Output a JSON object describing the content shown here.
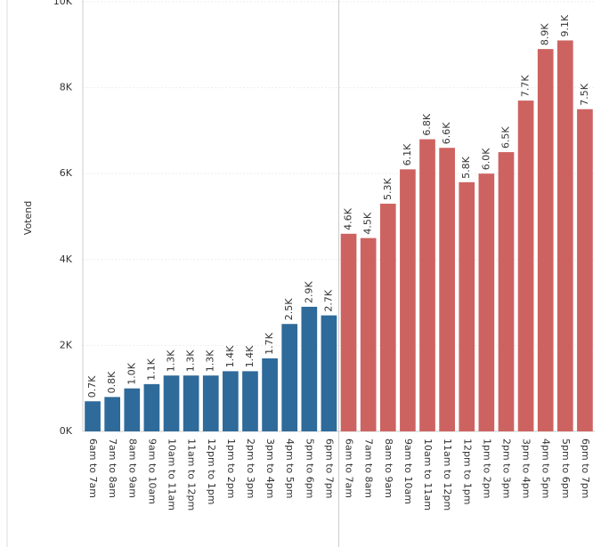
{
  "chart_data": {
    "type": "bar",
    "y_label": "Votend",
    "categories": [
      "6am to 7am",
      "7am to 8am",
      "8am to 9am",
      "9am to 10am",
      "10am to 11am",
      "11am to 12pm",
      "12pm to 1pm",
      "1pm to 2pm",
      "2pm to 3pm",
      "3pm to 4pm",
      "4pm to 5pm",
      "5pm to 6pm",
      "6pm to 7pm"
    ],
    "ylim": [
      0,
      10000
    ],
    "yticks": [
      {
        "value": 0,
        "label": "0K"
      },
      {
        "value": 2000,
        "label": "2K"
      },
      {
        "value": 4000,
        "label": "4K"
      },
      {
        "value": 6000,
        "label": "6K"
      },
      {
        "value": 8000,
        "label": "8K"
      },
      {
        "value": 10000,
        "label": "10K"
      }
    ],
    "grid": true,
    "panels": [
      {
        "color": "#2e6a9a",
        "values": [
          700,
          800,
          1000,
          1100,
          1300,
          1300,
          1300,
          1400,
          1400,
          1700,
          2500,
          2900,
          2700
        ],
        "value_labels": [
          "0.7K",
          "0.8K",
          "1.0K",
          "1.1K",
          "1.3K",
          "1.3K",
          "1.3K",
          "1.4K",
          "1.4K",
          "1.7K",
          "2.5K",
          "2.9K",
          "2.7K"
        ]
      },
      {
        "color": "#cd6361",
        "values": [
          4600,
          4500,
          5300,
          6100,
          6800,
          6600,
          5800,
          6000,
          6500,
          7700,
          8900,
          9100,
          7500
        ],
        "value_labels": [
          "4.6K",
          "4.5K",
          "5.3K",
          "6.1K",
          "6.8K",
          "6.6K",
          "5.8K",
          "6.0K",
          "6.5K",
          "7.7K",
          "8.9K",
          "9.1K",
          "7.5K"
        ]
      }
    ]
  }
}
